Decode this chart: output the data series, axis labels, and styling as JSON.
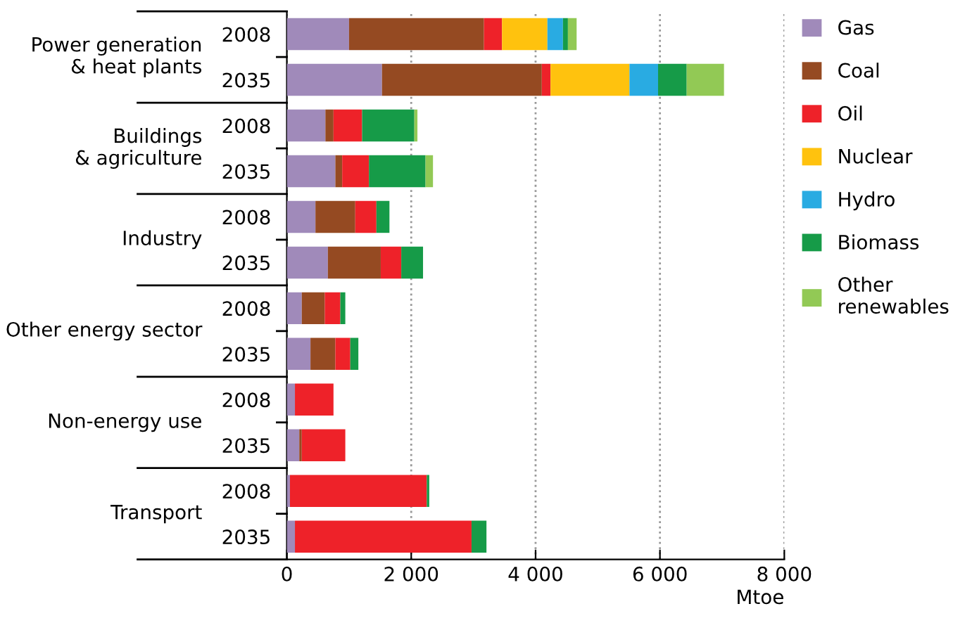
{
  "chart_data": {
    "type": "bar",
    "orientation": "horizontal",
    "stacked": true,
    "categories": [
      "2008",
      "2035",
      "2008",
      "2035",
      "2008",
      "2035",
      "2008",
      "2035",
      "2008",
      "2035",
      "2008",
      "2035"
    ],
    "series": [
      {
        "name": "Gas",
        "color": "#a08aba",
        "values": [
          1000,
          1530,
          620,
          780,
          460,
          660,
          240,
          380,
          130,
          200,
          50,
          130
        ]
      },
      {
        "name": "Coal",
        "color": "#954a22",
        "values": [
          2170,
          2570,
          130,
          110,
          640,
          850,
          370,
          400,
          0,
          40,
          0,
          0
        ]
      },
      {
        "name": "Oil",
        "color": "#ee2229",
        "values": [
          290,
          140,
          460,
          430,
          340,
          330,
          250,
          240,
          620,
          700,
          2200,
          2840
        ]
      },
      {
        "name": "Nuclear",
        "color": "#ffc20e",
        "values": [
          730,
          1270,
          0,
          0,
          0,
          0,
          0,
          0,
          0,
          0,
          0,
          0
        ]
      },
      {
        "name": "Hydro",
        "color": "#29abe2",
        "values": [
          250,
          460,
          0,
          0,
          0,
          0,
          0,
          0,
          0,
          0,
          0,
          0
        ]
      },
      {
        "name": "Biomass",
        "color": "#169b48",
        "values": [
          80,
          460,
          840,
          910,
          210,
          350,
          80,
          130,
          0,
          0,
          40,
          240
        ]
      },
      {
        "name": "Other\nrenewables",
        "color": "#92c955",
        "values": [
          140,
          600,
          50,
          120,
          0,
          0,
          0,
          0,
          0,
          0,
          0,
          0
        ]
      }
    ],
    "annotations": [
      "Power generation\n& heat plants",
      "Buildings\n& agriculture",
      "Industry",
      "Other energy sector",
      "Non-energy use",
      "Transport"
    ],
    "xlabel": "Mtoe",
    "xlim": [
      0,
      8000
    ],
    "xticks": [
      {
        "value": 0,
        "label": "0"
      },
      {
        "value": 2000,
        "label": "2 000"
      },
      {
        "value": 4000,
        "label": "4 000"
      },
      {
        "value": 6000,
        "label": "6 000"
      },
      {
        "value": 8000,
        "label": "8 000"
      }
    ],
    "grid": "x",
    "legend": "right"
  }
}
